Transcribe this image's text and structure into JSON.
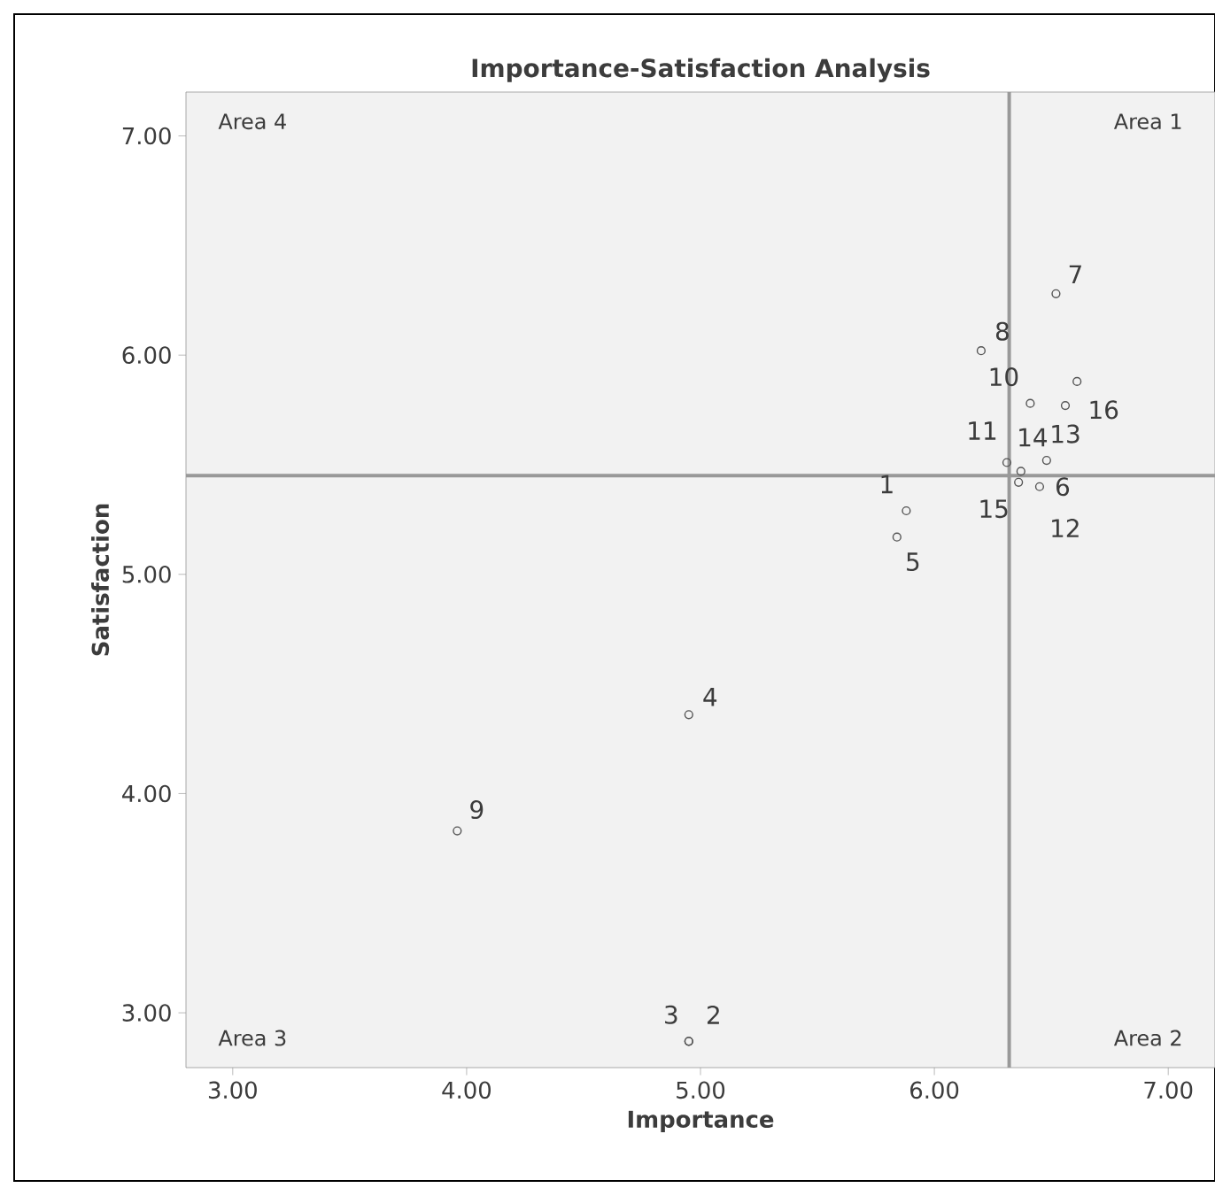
{
  "chart_data": {
    "type": "scatter",
    "title": "Importance-Satisfaction Analysis",
    "xlabel": "Importance",
    "ylabel": "Satisfaction",
    "xlim": [
      2.8,
      7.2
    ],
    "ylim": [
      2.75,
      7.2
    ],
    "xticks": [
      {
        "value": 3,
        "label": "3.00"
      },
      {
        "value": 4,
        "label": "4.00"
      },
      {
        "value": 5,
        "label": "5.00"
      },
      {
        "value": 6,
        "label": "6.00"
      },
      {
        "value": 7,
        "label": "7.00"
      }
    ],
    "yticks": [
      {
        "value": 3,
        "label": "3.00"
      },
      {
        "value": 4,
        "label": "4.00"
      },
      {
        "value": 5,
        "label": "5.00"
      },
      {
        "value": 6,
        "label": "6.00"
      },
      {
        "value": 7,
        "label": "7.00"
      }
    ],
    "grid": false,
    "marker": "circle",
    "series": [
      {
        "color": "#555555",
        "x": [
          5.88,
          4.95,
          4.95,
          4.95,
          5.84,
          6.45,
          6.52,
          6.2,
          3.96,
          6.41,
          6.31,
          6.37,
          6.56,
          6.48,
          6.36,
          6.61
        ],
        "values": [
          5.29,
          2.87,
          2.87,
          4.36,
          5.17,
          5.4,
          6.28,
          6.02,
          3.83,
          5.78,
          5.51,
          5.47,
          5.77,
          5.52,
          5.42,
          5.88
        ]
      }
    ],
    "ref_lines": [
      {
        "axis": "x",
        "value": 6.32,
        "color": "#999999"
      },
      {
        "axis": "y",
        "value": 5.45,
        "color": "#999999"
      }
    ],
    "annotations": [
      "Area 4",
      "Area 1",
      "Area 3",
      "Area 2",
      {
        "text": "1",
        "x": 5.88,
        "y": 5.29
      },
      {
        "text": "2",
        "x": 4.95,
        "y": 2.87
      },
      {
        "text": "3",
        "x": 4.95,
        "y": 2.87
      },
      {
        "text": "4",
        "x": 4.95,
        "y": 4.36
      },
      {
        "text": "5",
        "x": 5.84,
        "y": 5.17
      },
      {
        "text": "6",
        "x": 6.45,
        "y": 5.4
      },
      {
        "text": "7",
        "x": 6.52,
        "y": 6.28
      },
      {
        "text": "8",
        "x": 6.2,
        "y": 6.02
      },
      {
        "text": "9",
        "x": 3.96,
        "y": 3.83
      },
      {
        "text": "10",
        "x": 6.41,
        "y": 5.78
      },
      {
        "text": "11",
        "x": 6.31,
        "y": 5.51
      },
      {
        "text": "12",
        "x": 6.37,
        "y": 5.47
      },
      {
        "text": "13",
        "x": 6.56,
        "y": 5.77
      },
      {
        "text": "14",
        "x": 6.48,
        "y": 5.52
      },
      {
        "text": "15",
        "x": 6.36,
        "y": 5.42
      },
      {
        "text": "16",
        "x": 6.61,
        "y": 5.88
      }
    ]
  }
}
